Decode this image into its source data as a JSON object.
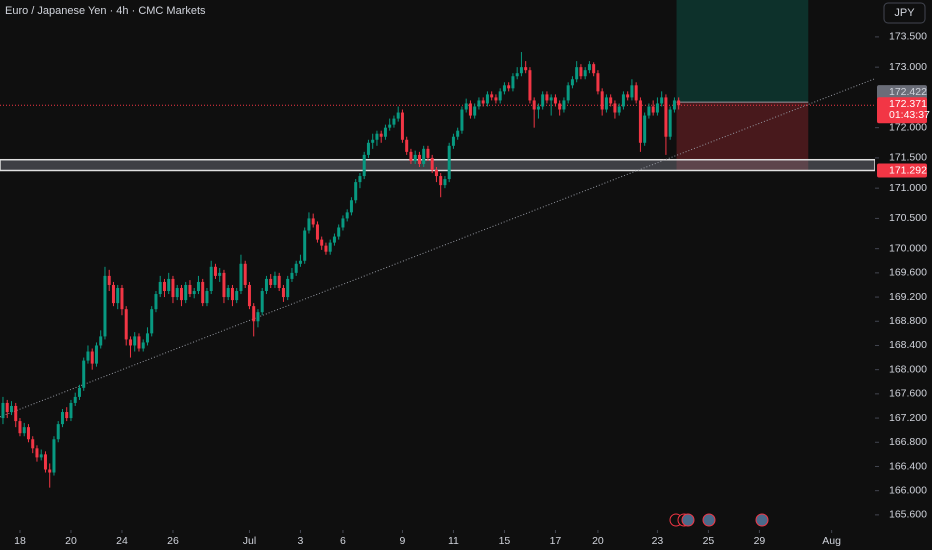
{
  "chart_data": {
    "type": "candlestick",
    "title": "Euro / Japanese Yen · 4h · CMC Markets",
    "currency": "JPY",
    "up_color": "#089981",
    "down_color": "#f23645",
    "grid": false,
    "x": [
      -4,
      -3,
      -2,
      -1,
      0,
      1,
      2,
      3,
      4,
      5,
      6,
      7,
      8,
      9,
      10,
      11,
      12,
      13,
      14,
      15,
      16,
      17,
      18,
      19,
      20,
      21,
      22,
      23,
      24,
      25,
      26,
      27,
      28,
      29,
      30,
      31,
      32,
      33,
      34,
      35,
      36,
      37,
      38,
      39,
      40,
      41,
      42,
      43,
      44,
      45,
      46,
      47,
      48,
      49,
      50,
      51,
      52,
      53,
      54,
      55,
      56,
      57,
      58,
      59,
      60,
      61,
      62,
      63,
      64,
      65,
      66,
      67,
      68,
      69,
      70,
      71,
      72,
      73,
      74,
      75,
      76,
      77,
      78,
      79,
      80,
      81,
      82,
      83,
      84,
      85,
      86,
      87,
      88,
      89,
      90,
      91,
      92,
      93,
      94,
      95,
      96,
      97,
      98,
      99,
      100,
      101,
      102,
      103,
      104,
      105,
      106,
      107,
      108,
      109,
      110,
      111,
      112,
      113,
      114,
      115,
      116,
      117,
      118,
      119,
      120,
      121,
      122,
      123,
      124,
      125,
      126,
      127,
      128,
      129,
      130,
      131,
      132,
      133,
      134,
      135,
      136,
      137,
      138,
      139,
      140,
      141,
      142,
      143,
      144,
      145,
      146,
      147,
      148,
      149,
      150,
      151,
      152,
      153,
      154,
      155
    ],
    "ohlc": [
      [
        167.2,
        167.55,
        167.1,
        167.45
      ],
      [
        167.45,
        167.5,
        167.2,
        167.3
      ],
      [
        167.3,
        167.48,
        167.25,
        167.4
      ],
      [
        167.4,
        167.45,
        167.05,
        167.15
      ],
      [
        167.15,
        167.2,
        166.9,
        166.95
      ],
      [
        166.95,
        167.12,
        166.9,
        167.05
      ],
      [
        167.05,
        167.1,
        166.8,
        166.85
      ],
      [
        166.85,
        166.9,
        166.62,
        166.7
      ],
      [
        166.7,
        166.75,
        166.48,
        166.55
      ],
      [
        166.55,
        166.68,
        166.5,
        166.6
      ],
      [
        166.6,
        166.65,
        166.3,
        166.35
      ],
      [
        166.35,
        166.45,
        166.05,
        166.3
      ],
      [
        166.3,
        166.9,
        166.25,
        166.85
      ],
      [
        166.85,
        167.15,
        166.8,
        167.1
      ],
      [
        167.1,
        167.35,
        167.05,
        167.3
      ],
      [
        167.3,
        167.38,
        167.15,
        167.2
      ],
      [
        167.2,
        167.5,
        167.15,
        167.45
      ],
      [
        167.45,
        167.62,
        167.4,
        167.55
      ],
      [
        167.55,
        167.75,
        167.5,
        167.7
      ],
      [
        167.7,
        168.2,
        167.65,
        168.15
      ],
      [
        168.15,
        168.4,
        168.1,
        168.3
      ],
      [
        168.3,
        168.35,
        168.0,
        168.1
      ],
      [
        168.1,
        168.45,
        168.05,
        168.4
      ],
      [
        168.4,
        168.65,
        168.35,
        168.55
      ],
      [
        168.55,
        169.7,
        168.5,
        169.55
      ],
      [
        169.55,
        169.65,
        169.3,
        169.4
      ],
      [
        169.4,
        169.45,
        169.05,
        169.1
      ],
      [
        169.1,
        169.4,
        169.0,
        169.35
      ],
      [
        169.35,
        169.4,
        168.9,
        169.0
      ],
      [
        169.0,
        169.05,
        168.4,
        168.5
      ],
      [
        168.5,
        168.55,
        168.2,
        168.4
      ],
      [
        168.4,
        168.62,
        168.3,
        168.55
      ],
      [
        168.55,
        168.6,
        168.3,
        168.35
      ],
      [
        168.35,
        168.5,
        168.3,
        168.45
      ],
      [
        168.45,
        168.7,
        168.4,
        168.6
      ],
      [
        168.6,
        169.05,
        168.55,
        169.0
      ],
      [
        169.0,
        169.3,
        168.95,
        169.25
      ],
      [
        169.25,
        169.55,
        169.2,
        169.45
      ],
      [
        169.45,
        169.5,
        169.2,
        169.3
      ],
      [
        169.3,
        169.6,
        169.25,
        169.5
      ],
      [
        169.5,
        169.55,
        169.1,
        169.2
      ],
      [
        169.2,
        169.4,
        169.15,
        169.35
      ],
      [
        169.35,
        169.4,
        169.05,
        169.15
      ],
      [
        169.15,
        169.45,
        169.1,
        169.4
      ],
      [
        169.4,
        169.48,
        169.2,
        169.25
      ],
      [
        169.25,
        169.35,
        169.18,
        169.3
      ],
      [
        169.3,
        169.55,
        169.25,
        169.45
      ],
      [
        169.45,
        169.5,
        169.05,
        169.1
      ],
      [
        169.1,
        169.35,
        169.05,
        169.3
      ],
      [
        169.3,
        169.8,
        169.25,
        169.7
      ],
      [
        169.7,
        169.75,
        169.5,
        169.55
      ],
      [
        169.55,
        169.68,
        169.45,
        169.6
      ],
      [
        169.6,
        169.65,
        169.1,
        169.2
      ],
      [
        169.2,
        169.4,
        169.15,
        169.35
      ],
      [
        169.35,
        169.4,
        169.05,
        169.15
      ],
      [
        169.15,
        169.35,
        169.1,
        169.3
      ],
      [
        169.3,
        169.9,
        169.25,
        169.75
      ],
      [
        169.75,
        169.8,
        169.35,
        169.4
      ],
      [
        169.4,
        169.45,
        169.0,
        169.05
      ],
      [
        169.05,
        169.1,
        168.55,
        168.8
      ],
      [
        168.8,
        169.0,
        168.7,
        168.95
      ],
      [
        168.95,
        169.35,
        168.9,
        169.3
      ],
      [
        169.3,
        169.55,
        169.25,
        169.5
      ],
      [
        169.5,
        169.58,
        169.35,
        169.4
      ],
      [
        169.4,
        169.62,
        169.35,
        169.55
      ],
      [
        169.55,
        169.6,
        169.3,
        169.35
      ],
      [
        169.35,
        169.4,
        169.12,
        169.2
      ],
      [
        169.2,
        169.55,
        169.15,
        169.5
      ],
      [
        169.5,
        169.68,
        169.45,
        169.6
      ],
      [
        169.6,
        169.8,
        169.55,
        169.75
      ],
      [
        169.75,
        169.9,
        169.7,
        169.8
      ],
      [
        169.8,
        170.35,
        169.75,
        170.3
      ],
      [
        170.3,
        170.6,
        170.25,
        170.5
      ],
      [
        170.5,
        170.58,
        170.35,
        170.4
      ],
      [
        170.4,
        170.45,
        170.1,
        170.15
      ],
      [
        170.15,
        170.2,
        169.98,
        170.05
      ],
      [
        170.05,
        170.1,
        169.9,
        169.95
      ],
      [
        169.95,
        170.15,
        169.9,
        170.1
      ],
      [
        170.1,
        170.25,
        170.05,
        170.2
      ],
      [
        170.2,
        170.4,
        170.15,
        170.35
      ],
      [
        170.35,
        170.55,
        170.3,
        170.5
      ],
      [
        170.5,
        170.65,
        170.45,
        170.6
      ],
      [
        170.6,
        170.85,
        170.55,
        170.8
      ],
      [
        170.8,
        171.15,
        170.75,
        171.1
      ],
      [
        171.1,
        171.25,
        171.0,
        171.2
      ],
      [
        171.2,
        171.6,
        171.15,
        171.55
      ],
      [
        171.55,
        171.8,
        171.5,
        171.75
      ],
      [
        171.75,
        171.9,
        171.65,
        171.8
      ],
      [
        171.8,
        171.95,
        171.7,
        171.9
      ],
      [
        171.9,
        171.95,
        171.75,
        171.85
      ],
      [
        171.85,
        172.05,
        171.8,
        172.0
      ],
      [
        172.0,
        172.15,
        171.95,
        172.05
      ],
      [
        172.05,
        172.2,
        172.0,
        172.15
      ],
      [
        172.15,
        172.35,
        172.1,
        172.25
      ],
      [
        172.25,
        172.3,
        171.75,
        171.8
      ],
      [
        171.8,
        171.85,
        171.55,
        171.6
      ],
      [
        171.6,
        171.65,
        171.4,
        171.45
      ],
      [
        171.45,
        171.62,
        171.4,
        171.55
      ],
      [
        171.55,
        171.6,
        171.35,
        171.4
      ],
      [
        171.4,
        171.7,
        171.35,
        171.65
      ],
      [
        171.65,
        171.7,
        171.45,
        171.5
      ],
      [
        171.5,
        171.55,
        171.25,
        171.3
      ],
      [
        171.3,
        171.35,
        171.1,
        171.2
      ],
      [
        171.2,
        171.25,
        170.85,
        171.05
      ],
      [
        171.05,
        171.2,
        171.0,
        171.15
      ],
      [
        171.15,
        171.75,
        171.1,
        171.7
      ],
      [
        171.7,
        171.9,
        171.65,
        171.85
      ],
      [
        171.85,
        172.0,
        171.8,
        171.95
      ],
      [
        171.95,
        172.35,
        171.9,
        172.3
      ],
      [
        172.3,
        172.48,
        172.25,
        172.4
      ],
      [
        172.4,
        172.45,
        172.15,
        172.2
      ],
      [
        172.2,
        172.4,
        172.15,
        172.35
      ],
      [
        172.35,
        172.5,
        172.3,
        172.45
      ],
      [
        172.45,
        172.5,
        172.35,
        172.4
      ],
      [
        172.4,
        172.6,
        172.35,
        172.55
      ],
      [
        172.55,
        172.6,
        172.45,
        172.5
      ],
      [
        172.5,
        172.55,
        172.4,
        172.45
      ],
      [
        172.45,
        172.65,
        172.4,
        172.6
      ],
      [
        172.6,
        172.75,
        172.55,
        172.7
      ],
      [
        172.7,
        172.75,
        172.6,
        172.65
      ],
      [
        172.65,
        172.9,
        172.6,
        172.85
      ],
      [
        172.85,
        173.0,
        172.8,
        172.9
      ],
      [
        172.9,
        173.25,
        172.85,
        173.0
      ],
      [
        173.0,
        173.1,
        172.9,
        172.95
      ],
      [
        172.95,
        173.0,
        172.4,
        172.45
      ],
      [
        172.45,
        172.5,
        172.0,
        172.3
      ],
      [
        172.3,
        172.4,
        172.15,
        172.35
      ],
      [
        172.35,
        172.6,
        172.3,
        172.55
      ],
      [
        172.55,
        172.6,
        172.4,
        172.45
      ],
      [
        172.45,
        172.55,
        172.2,
        172.5
      ],
      [
        172.5,
        172.55,
        172.35,
        172.4
      ],
      [
        172.4,
        172.45,
        172.2,
        172.3
      ],
      [
        172.3,
        172.5,
        172.25,
        172.45
      ],
      [
        172.45,
        172.75,
        172.4,
        172.7
      ],
      [
        172.7,
        172.85,
        172.65,
        172.8
      ],
      [
        172.8,
        173.1,
        172.75,
        173.0
      ],
      [
        173.0,
        173.05,
        172.8,
        172.85
      ],
      [
        172.85,
        173.0,
        172.8,
        172.95
      ],
      [
        172.95,
        173.1,
        172.9,
        173.05
      ],
      [
        173.05,
        173.08,
        172.85,
        172.9
      ],
      [
        172.9,
        172.95,
        172.55,
        172.6
      ],
      [
        172.6,
        172.65,
        172.2,
        172.3
      ],
      [
        172.3,
        172.55,
        172.25,
        172.5
      ],
      [
        172.5,
        172.55,
        172.35,
        172.4
      ],
      [
        172.4,
        172.45,
        172.15,
        172.25
      ],
      [
        172.25,
        172.4,
        172.2,
        172.35
      ],
      [
        172.35,
        172.6,
        172.3,
        172.55
      ],
      [
        172.55,
        172.6,
        172.45,
        172.5
      ],
      [
        172.5,
        172.8,
        172.45,
        172.7
      ],
      [
        172.7,
        172.75,
        172.4,
        172.45
      ],
      [
        172.45,
        172.5,
        171.6,
        171.75
      ],
      [
        171.75,
        172.25,
        171.7,
        172.2
      ],
      [
        172.2,
        172.4,
        172.15,
        172.35
      ],
      [
        172.35,
        172.45,
        172.2,
        172.25
      ],
      [
        172.25,
        172.5,
        172.2,
        172.4
      ],
      [
        172.4,
        172.6,
        172.35,
        172.5
      ],
      [
        172.5,
        172.55,
        171.55,
        171.85
      ],
      [
        171.85,
        172.35,
        171.8,
        172.3
      ],
      [
        172.3,
        172.5,
        172.25,
        172.45
      ],
      [
        172.45,
        172.5,
        172.3,
        172.371
      ]
    ],
    "countdown": "01:43:37",
    "zone": {
      "low": 171.292,
      "high": 171.47
    },
    "position": {
      "entry": 172.422,
      "stop": 171.292,
      "target": 174.25,
      "x_start": 154.5,
      "x_end": 185.5
    },
    "trendline": [
      [
        -4.7,
        167.22
      ],
      [
        201.2,
        172.81
      ]
    ],
    "xlim": [
      -4.7,
      201.2
    ],
    "xticks": [
      {
        "value": 0,
        "label": "18"
      },
      {
        "value": 12,
        "label": "20"
      },
      {
        "value": 24,
        "label": "24"
      },
      {
        "value": 36,
        "label": "26"
      },
      {
        "value": 54,
        "label": "Jul"
      },
      {
        "value": 66,
        "label": "3"
      },
      {
        "value": 76,
        "label": "6"
      },
      {
        "value": 90,
        "label": "9"
      },
      {
        "value": 102,
        "label": "11"
      },
      {
        "value": 114,
        "label": "15"
      },
      {
        "value": 126,
        "label": "17"
      },
      {
        "value": 136,
        "label": "20"
      },
      {
        "value": 150,
        "label": "23"
      },
      {
        "value": 162,
        "label": "25"
      },
      {
        "value": 174,
        "label": "29"
      },
      {
        "value": 191,
        "label": "Aug"
      }
    ],
    "ylim": [
      165.35,
      174.11
    ],
    "yticks": [
      {
        "value": 173.5,
        "label": "173.500"
      },
      {
        "value": 173,
        "label": "173.000"
      },
      {
        "value": 172,
        "label": "172.000"
      },
      {
        "value": 171.5,
        "label": "171.500"
      },
      {
        "value": 171,
        "label": "171.000"
      },
      {
        "value": 170.5,
        "label": "170.500"
      },
      {
        "value": 170,
        "label": "170.000"
      },
      {
        "value": 169.6,
        "label": "169.600"
      },
      {
        "value": 169.2,
        "label": "169.200"
      },
      {
        "value": 168.8,
        "label": "168.800"
      },
      {
        "value": 168.4,
        "label": "168.400"
      },
      {
        "value": 168,
        "label": "168.000"
      },
      {
        "value": 167.6,
        "label": "167.600"
      },
      {
        "value": 167.2,
        "label": "167.200"
      },
      {
        "value": 166.8,
        "label": "166.800"
      },
      {
        "value": 166.4,
        "label": "166.400"
      },
      {
        "value": 166,
        "label": "166.000"
      },
      {
        "value": 165.6,
        "label": "165.600"
      }
    ]
  }
}
